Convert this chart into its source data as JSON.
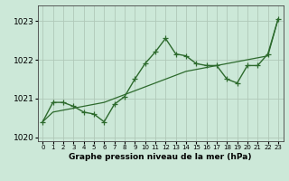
{
  "x": [
    0,
    1,
    2,
    3,
    4,
    5,
    6,
    7,
    8,
    9,
    10,
    11,
    12,
    13,
    14,
    15,
    16,
    17,
    18,
    19,
    20,
    21,
    22,
    23
  ],
  "y_main": [
    1020.4,
    1020.9,
    1020.9,
    1020.8,
    1020.65,
    1020.6,
    1020.4,
    1020.85,
    1021.05,
    1021.5,
    1021.9,
    1022.2,
    1022.55,
    1022.15,
    1022.1,
    1021.9,
    1021.85,
    1021.85,
    1021.5,
    1021.4,
    1021.85,
    1021.85,
    1022.15,
    1023.05
  ],
  "y_trend": [
    1020.4,
    1020.65,
    1020.7,
    1020.75,
    1020.8,
    1020.85,
    1020.9,
    1021.0,
    1021.1,
    1021.2,
    1021.3,
    1021.4,
    1021.5,
    1021.6,
    1021.7,
    1021.75,
    1021.8,
    1021.85,
    1021.9,
    1021.95,
    1022.0,
    1022.05,
    1022.1,
    1023.05
  ],
  "ylim": [
    1019.9,
    1023.4
  ],
  "yticks": [
    1020,
    1021,
    1022,
    1023
  ],
  "xticks": [
    0,
    1,
    2,
    3,
    4,
    5,
    6,
    7,
    8,
    9,
    10,
    11,
    12,
    13,
    14,
    15,
    16,
    17,
    18,
    19,
    20,
    21,
    22,
    23
  ],
  "xlabel": "Graphe pression niveau de la mer (hPa)",
  "line_color": "#2d6a2d",
  "bg_color": "#cce8d8",
  "grid_color": "#b0c8b8",
  "marker": "+",
  "marker_size": 4,
  "linewidth": 1.0
}
